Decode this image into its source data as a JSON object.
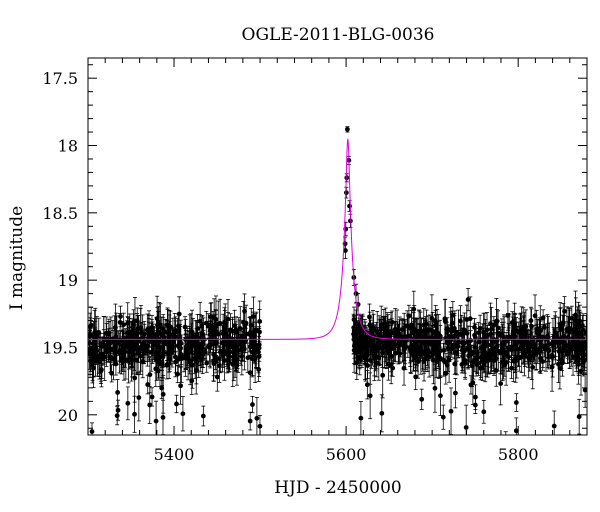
{
  "chart_data": {
    "type": "scatter",
    "title": "OGLE-2011-BLG-0036",
    "xlabel": "HJD - 2450000",
    "ylabel": "I magnitude",
    "xlim": [
      5300,
      5880
    ],
    "ylim": [
      20.15,
      17.35
    ],
    "y_inverted": true,
    "xticks": [
      5400,
      5600,
      5800
    ],
    "yticks": [
      17.5,
      18,
      18.5,
      19,
      19.5,
      20
    ],
    "ytick_labels": [
      "17.5",
      "18",
      "18.5",
      "19",
      "19.5",
      "20"
    ],
    "grid": false,
    "legend": "none",
    "colors": {
      "points": "#000000",
      "model": "#e000e0"
    },
    "model": {
      "type": "point-lens microlensing fit",
      "baseline_mag": 19.44,
      "peak_hjd": 5602,
      "peak_mag": 17.95
    },
    "observing_seasons": [
      [
        5300,
        5500
      ],
      [
        5608,
        5880
      ]
    ],
    "series_peak": [
      {
        "x": 5601.5,
        "y": 17.88,
        "err": 0.02
      },
      {
        "x": 5603.2,
        "y": 18.11,
        "err": 0.03
      },
      {
        "x": 5600.8,
        "y": 18.24,
        "err": 0.03
      },
      {
        "x": 5600.3,
        "y": 18.35,
        "err": 0.04
      },
      {
        "x": 5604.0,
        "y": 18.45,
        "err": 0.04
      },
      {
        "x": 5605.0,
        "y": 18.56,
        "err": 0.05
      },
      {
        "x": 5599.6,
        "y": 18.62,
        "err": 0.05
      },
      {
        "x": 5598.8,
        "y": 18.73,
        "err": 0.05
      },
      {
        "x": 5599.2,
        "y": 18.78,
        "err": 0.06
      },
      {
        "x": 5609.0,
        "y": 18.98,
        "err": 0.06
      },
      {
        "x": 5611.5,
        "y": 19.1,
        "err": 0.07
      },
      {
        "x": 5614.0,
        "y": 19.18,
        "err": 0.08
      }
    ]
  }
}
